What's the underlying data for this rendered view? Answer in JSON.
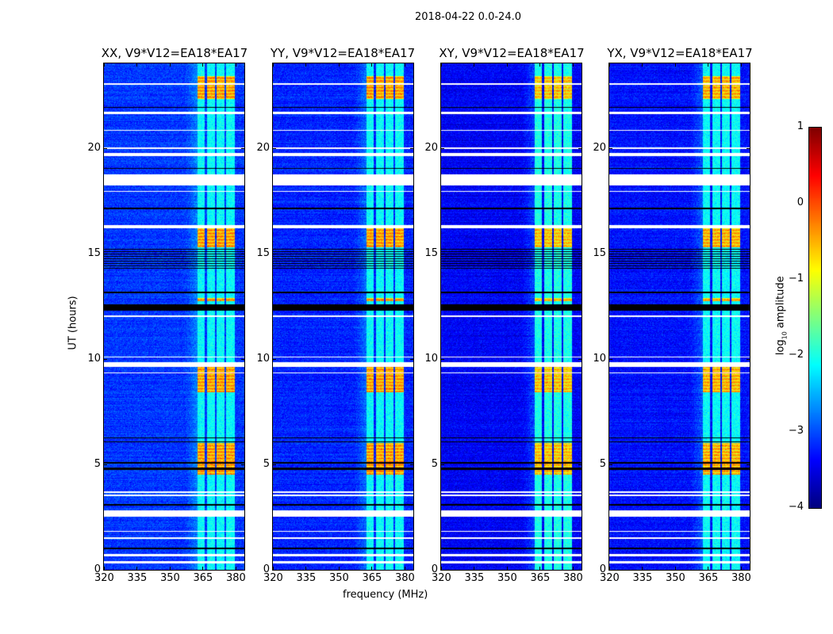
{
  "suptitle": "2018-04-22 0.0-24.0",
  "xlabel": "frequency (MHz)",
  "ylabel": "UT (hours)",
  "colorbar": {
    "label_main": "log",
    "label_sub": "10",
    "label_rest": " amplitude",
    "range": [
      -4,
      1
    ],
    "ticks": [
      1,
      0,
      -1,
      -2,
      -3,
      -4
    ],
    "tick_labels": [
      "1",
      "0",
      "−1",
      "−2",
      "−3",
      "−4"
    ],
    "colormap": "jet"
  },
  "chart_data": [
    {
      "type": "heatmap",
      "title": "XX, V9*V12=EA18*EA17",
      "baseline": -3.1,
      "band_level": -2.1,
      "burst_level": -0.3
    },
    {
      "type": "heatmap",
      "title": "YY, V9*V12=EA18*EA17",
      "baseline": -3.2,
      "band_level": -2.1,
      "burst_level": -0.3
    },
    {
      "type": "heatmap",
      "title": "XY, V9*V12=EA18*EA17",
      "baseline": -3.4,
      "band_level": -2.0,
      "burst_level": -0.5
    },
    {
      "type": "heatmap",
      "title": "YX, V9*V12=EA18*EA17",
      "baseline": -3.3,
      "band_level": -2.1,
      "burst_level": -0.4
    }
  ],
  "axes": {
    "xlim": [
      320,
      384
    ],
    "ylim": [
      0,
      24
    ],
    "xticks": [
      320,
      335,
      350,
      365,
      380
    ],
    "xtick_labels": [
      "320",
      "335",
      "350",
      "365",
      "380"
    ],
    "yticks": [
      0,
      5,
      10,
      15,
      20
    ],
    "ytick_labels": [
      "0",
      "5",
      "10",
      "15",
      "20"
    ]
  },
  "features": {
    "rfi_channels_mhz": [
      [
        362.5,
        366
      ],
      [
        367,
        370.5
      ],
      [
        371.5,
        375
      ],
      [
        375.8,
        379.5
      ]
    ],
    "flagged_hours": [
      [
        0.3,
        0.42
      ],
      [
        0.62,
        0.75
      ],
      [
        1.45,
        1.55
      ],
      [
        1.8,
        1.85
      ],
      [
        2.5,
        2.8
      ],
      [
        3.5,
        3.55
      ],
      [
        3.65,
        3.7
      ],
      [
        9.3,
        9.36
      ],
      [
        9.6,
        9.85
      ],
      [
        10.05,
        10.1
      ],
      [
        12.0,
        12.05
      ],
      [
        16.2,
        16.32
      ],
      [
        17.9,
        17.96
      ],
      [
        18.2,
        18.75
      ],
      [
        19.6,
        19.75
      ],
      [
        19.95,
        20.0
      ],
      [
        20.8,
        20.86
      ],
      [
        21.6,
        21.72
      ],
      [
        23.0,
        23.05
      ]
    ],
    "dark_lines_hours": [
      [
        0.98,
        1.05
      ],
      [
        3.05,
        3.1
      ],
      [
        4.75,
        4.85
      ],
      [
        5.05,
        5.1
      ],
      [
        6.05,
        6.1
      ],
      [
        6.22,
        6.28
      ],
      [
        12.3,
        12.6
      ],
      [
        13.1,
        13.2
      ],
      [
        14.2,
        15.2
      ],
      [
        17.1,
        17.15
      ],
      [
        19.0,
        19.06
      ],
      [
        21.9,
        21.95
      ]
    ],
    "bursts_hours": [
      [
        22.3,
        23.4
      ],
      [
        15.3,
        16.2
      ],
      [
        12.75,
        12.9
      ],
      [
        8.4,
        9.8
      ],
      [
        4.5,
        6.0
      ]
    ]
  }
}
